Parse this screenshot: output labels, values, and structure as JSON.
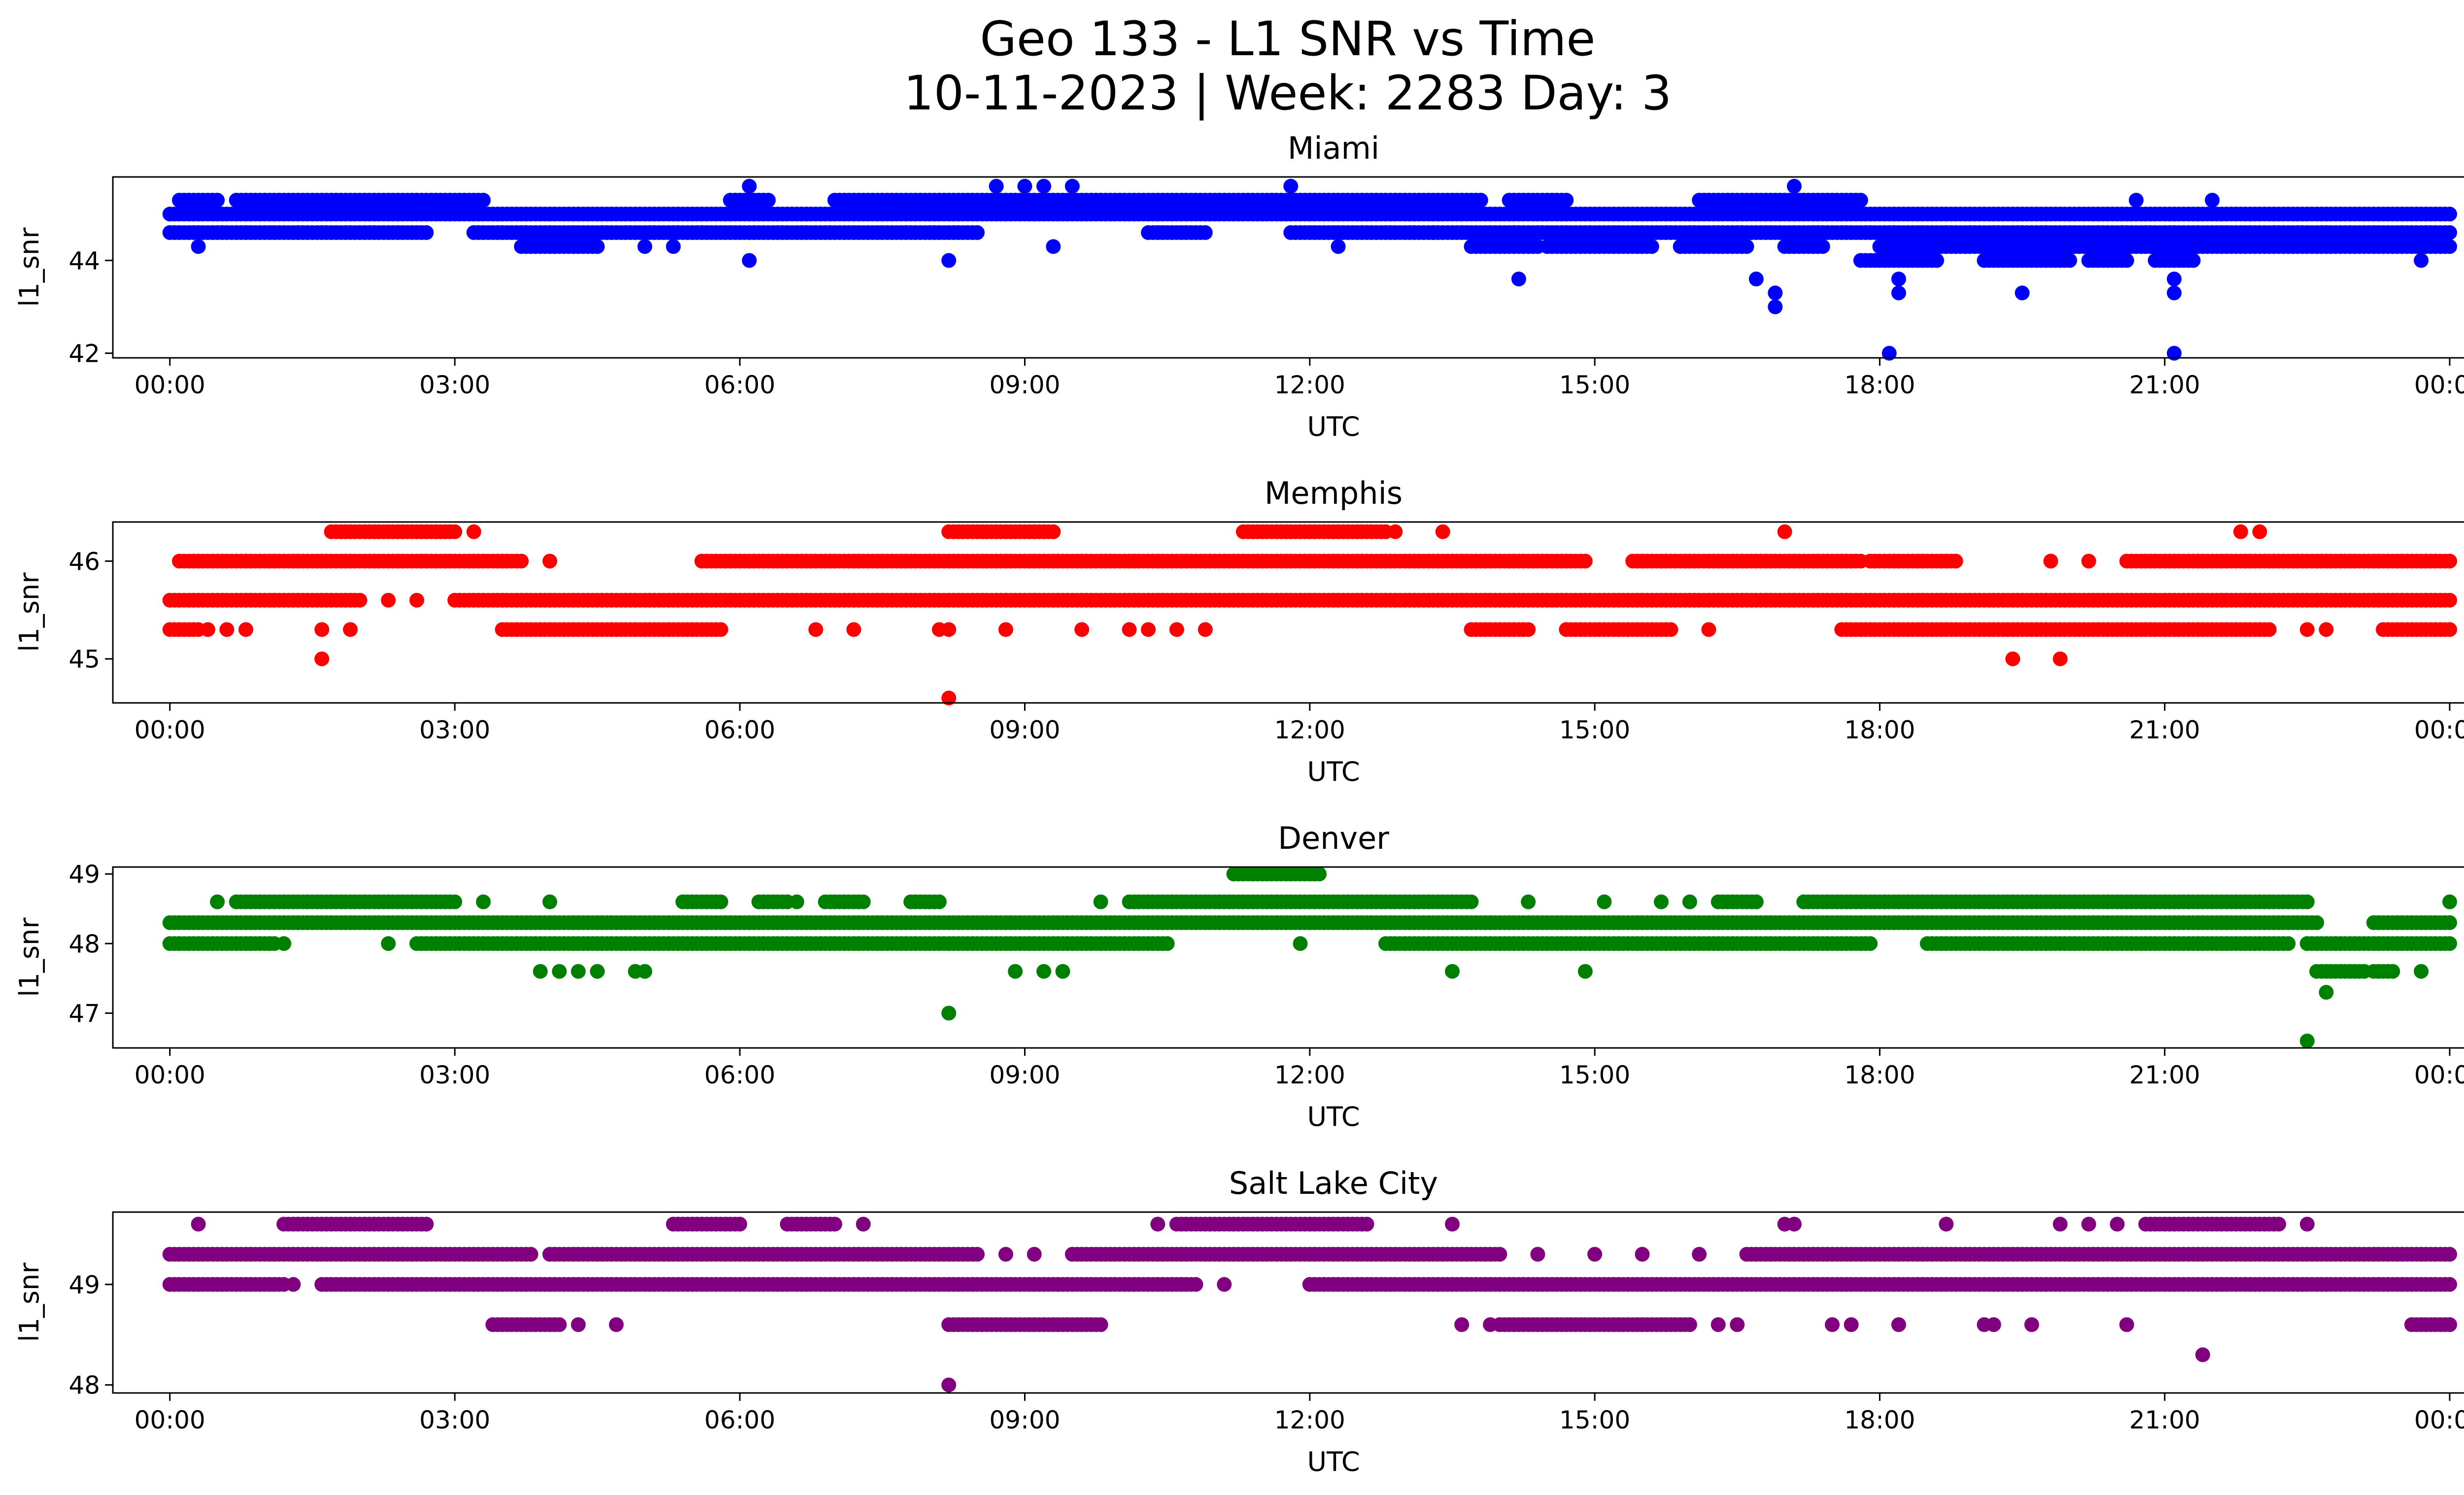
{
  "figure": {
    "title_line1": "Geo 133 - L1 SNR vs Time",
    "title_line2": "10-11-2023 | Week: 2283 Day: 3"
  },
  "chart_data": [
    {
      "type": "scatter",
      "title": "Miami",
      "xlabel": "UTC",
      "ylabel": "l1_snr",
      "color": "#0000ff",
      "xlim": [
        -0.6,
        25.1
      ],
      "ylim": [
        41.9,
        45.8
      ],
      "x_tick_values": [
        0,
        3,
        6,
        9,
        12,
        15,
        18,
        21,
        24
      ],
      "x_tick_labels": [
        "00:00",
        "03:00",
        "06:00",
        "09:00",
        "12:00",
        "15:00",
        "18:00",
        "21:00",
        "00:00"
      ],
      "y_tick_values": [
        42,
        44
      ],
      "y_tick_labels": [
        "42",
        "44"
      ],
      "bands": [
        {
          "y": 45.0,
          "ranges": [
            [
              0,
              24
            ]
          ]
        },
        {
          "y": 44.6,
          "ranges": [
            [
              0,
              2.7
            ],
            [
              3.2,
              8.5
            ],
            [
              10.3,
              10.9
            ],
            [
              11.8,
              13.3
            ],
            [
              13.3,
              17.3
            ],
            [
              17.3,
              24
            ]
          ]
        },
        {
          "y": 45.3,
          "ranges": [
            [
              0.1,
              0.5
            ],
            [
              0.7,
              3.3
            ],
            [
              5.9,
              6.3
            ],
            [
              7.0,
              13.8
            ],
            [
              14.1,
              14.7
            ],
            [
              16.1,
              17.8
            ]
          ]
        },
        {
          "y": 44.3,
          "ranges": [
            [
              3.7,
              4.5
            ],
            [
              13.7,
              14.4
            ],
            [
              14.5,
              15.6
            ],
            [
              15.9,
              16.6
            ],
            [
              17.0,
              17.4
            ],
            [
              18.0,
              24
            ]
          ]
        },
        {
          "y": 44.0,
          "ranges": [
            [
              17.8,
              18.6
            ],
            [
              19.1,
              20.0
            ],
            [
              20.2,
              20.6
            ],
            [
              20.9,
              21.3
            ]
          ]
        }
      ],
      "points": [
        [
          0.3,
          44.3
        ],
        [
          8.2,
          44.0
        ],
        [
          6.1,
          44.0
        ],
        [
          8.7,
          45.6
        ],
        [
          9.0,
          45.6
        ],
        [
          9.2,
          45.6
        ],
        [
          9.5,
          45.6
        ],
        [
          11.8,
          45.6
        ],
        [
          17.1,
          45.6
        ],
        [
          6.1,
          45.6
        ],
        [
          14.2,
          43.6
        ],
        [
          16.7,
          43.6
        ],
        [
          16.9,
          43.3
        ],
        [
          16.9,
          43.0
        ],
        [
          18.2,
          43.6
        ],
        [
          18.2,
          43.3
        ],
        [
          18.1,
          42.0
        ],
        [
          19.5,
          43.3
        ],
        [
          21.1,
          43.6
        ],
        [
          21.1,
          43.3
        ],
        [
          21.1,
          42.0
        ],
        [
          20.7,
          45.3
        ],
        [
          21.5,
          45.3
        ],
        [
          23.7,
          44.0
        ],
        [
          12.3,
          44.3
        ],
        [
          9.3,
          44.3
        ],
        [
          5.3,
          44.3
        ],
        [
          5.0,
          44.3
        ]
      ]
    },
    {
      "type": "scatter",
      "title": "Memphis",
      "xlabel": "UTC",
      "ylabel": "l1_snr",
      "color": "#ff0000",
      "xlim": [
        -0.6,
        25.1
      ],
      "ylim": [
        44.55,
        46.4
      ],
      "x_tick_values": [
        0,
        3,
        6,
        9,
        12,
        15,
        18,
        21,
        24
      ],
      "x_tick_labels": [
        "00:00",
        "03:00",
        "06:00",
        "09:00",
        "12:00",
        "15:00",
        "18:00",
        "21:00",
        "00:00"
      ],
      "y_tick_values": [
        45,
        46
      ],
      "y_tick_labels": [
        "45",
        "46"
      ],
      "bands": [
        {
          "y": 45.6,
          "ranges": [
            [
              0,
              2.0
            ],
            [
              3.0,
              24
            ]
          ]
        },
        {
          "y": 46.0,
          "ranges": [
            [
              0.1,
              3.7
            ],
            [
              5.6,
              14.9
            ],
            [
              15.4,
              17.8
            ],
            [
              17.9,
              18.8
            ],
            [
              20.6,
              24
            ]
          ]
        },
        {
          "y": 45.3,
          "ranges": [
            [
              0,
              0.3
            ],
            [
              3.5,
              5.8
            ],
            [
              13.7,
              14.3
            ],
            [
              14.7,
              15.8
            ],
            [
              17.6,
              22.1
            ],
            [
              23.3,
              24
            ]
          ]
        },
        {
          "y": 46.3,
          "ranges": [
            [
              1.7,
              3.0
            ],
            [
              8.2,
              9.3
            ],
            [
              11.3,
              12.8
            ]
          ]
        }
      ],
      "points": [
        [
          0.4,
          45.3
        ],
        [
          0.6,
          45.3
        ],
        [
          0.8,
          45.3
        ],
        [
          1.6,
          45.3
        ],
        [
          1.9,
          45.3
        ],
        [
          4.0,
          46.0
        ],
        [
          3.2,
          46.3
        ],
        [
          6.8,
          45.3
        ],
        [
          7.2,
          45.3
        ],
        [
          8.1,
          45.3
        ],
        [
          8.2,
          45.3
        ],
        [
          8.8,
          45.3
        ],
        [
          9.6,
          45.3
        ],
        [
          10.1,
          45.3
        ],
        [
          10.3,
          45.3
        ],
        [
          10.6,
          45.3
        ],
        [
          10.9,
          45.3
        ],
        [
          13.4,
          46.3
        ],
        [
          12.9,
          46.3
        ],
        [
          17.0,
          46.3
        ],
        [
          21.8,
          46.3
        ],
        [
          22.0,
          46.3
        ],
        [
          16.2,
          45.3
        ],
        [
          2.3,
          45.6
        ],
        [
          2.6,
          45.6
        ],
        [
          1.6,
          45.0
        ],
        [
          8.2,
          44.6
        ],
        [
          19.4,
          45.0
        ],
        [
          19.9,
          45.0
        ],
        [
          19.8,
          46.0
        ],
        [
          20.2,
          46.0
        ],
        [
          22.5,
          45.3
        ],
        [
          22.7,
          45.3
        ]
      ]
    },
    {
      "type": "scatter",
      "title": "Denver",
      "xlabel": "UTC",
      "ylabel": "l1_snr",
      "color": "#008000",
      "xlim": [
        -0.6,
        25.1
      ],
      "ylim": [
        46.5,
        49.1
      ],
      "x_tick_values": [
        0,
        3,
        6,
        9,
        12,
        15,
        18,
        21,
        24
      ],
      "x_tick_labels": [
        "00:00",
        "03:00",
        "06:00",
        "09:00",
        "12:00",
        "15:00",
        "18:00",
        "21:00",
        "00:00"
      ],
      "y_tick_values": [
        47,
        48,
        49
      ],
      "y_tick_labels": [
        "47",
        "48",
        "49"
      ],
      "bands": [
        {
          "y": 48.3,
          "ranges": [
            [
              0,
              22.6
            ],
            [
              23.2,
              24
            ]
          ]
        },
        {
          "y": 48.0,
          "ranges": [
            [
              0,
              1.1
            ],
            [
              2.6,
              10.5
            ],
            [
              12.8,
              17.9
            ],
            [
              18.5,
              22.3
            ],
            [
              22.5,
              24
            ]
          ]
        },
        {
          "y": 48.6,
          "ranges": [
            [
              0.7,
              3.0
            ],
            [
              5.4,
              5.8
            ],
            [
              6.2,
              6.5
            ],
            [
              6.9,
              7.3
            ],
            [
              7.8,
              8.1
            ],
            [
              10.1,
              13.7
            ],
            [
              16.3,
              16.7
            ],
            [
              17.2,
              22.5
            ]
          ]
        },
        {
          "y": 47.6,
          "ranges": [
            [
              22.6,
              23.1
            ],
            [
              23.2,
              23.4
            ]
          ]
        },
        {
          "y": 49.0,
          "ranges": [
            [
              11.2,
              12.1
            ]
          ]
        }
      ],
      "points": [
        [
          0.5,
          48.6
        ],
        [
          3.3,
          48.6
        ],
        [
          4.0,
          48.6
        ],
        [
          6.6,
          48.6
        ],
        [
          9.8,
          48.6
        ],
        [
          14.3,
          48.6
        ],
        [
          15.1,
          48.6
        ],
        [
          15.7,
          48.6
        ],
        [
          16.0,
          48.6
        ],
        [
          1.2,
          48.0
        ],
        [
          2.3,
          48.0
        ],
        [
          11.9,
          48.0
        ],
        [
          22.5,
          48.0
        ],
        [
          22.8,
          48.0
        ],
        [
          3.9,
          47.6
        ],
        [
          4.1,
          47.6
        ],
        [
          4.3,
          47.6
        ],
        [
          4.5,
          47.6
        ],
        [
          4.9,
          47.6
        ],
        [
          5.0,
          47.6
        ],
        [
          8.9,
          47.6
        ],
        [
          9.2,
          47.6
        ],
        [
          9.4,
          47.6
        ],
        [
          13.5,
          47.6
        ],
        [
          14.9,
          47.6
        ],
        [
          23.7,
          47.6
        ],
        [
          8.2,
          47.0
        ],
        [
          22.7,
          47.3
        ],
        [
          22.5,
          46.6
        ],
        [
          24.0,
          48.6
        ]
      ]
    },
    {
      "type": "scatter",
      "title": "Salt Lake City",
      "xlabel": "UTC",
      "ylabel": "l1_snr",
      "color": "#800080",
      "xlim": [
        -0.6,
        25.1
      ],
      "ylim": [
        47.92,
        49.72
      ],
      "x_tick_values": [
        0,
        3,
        6,
        9,
        12,
        15,
        18,
        21,
        24
      ],
      "x_tick_labels": [
        "00:00",
        "03:00",
        "06:00",
        "09:00",
        "12:00",
        "15:00",
        "18:00",
        "21:00",
        "00:00"
      ],
      "y_tick_values": [
        48,
        49
      ],
      "y_tick_labels": [
        "48",
        "49"
      ],
      "bands": [
        {
          "y": 49.3,
          "ranges": [
            [
              0,
              3.8
            ],
            [
              4.0,
              8.5
            ],
            [
              9.5,
              14.0
            ],
            [
              16.6,
              24
            ]
          ]
        },
        {
          "y": 49.0,
          "ranges": [
            [
              0,
              1.2
            ],
            [
              1.6,
              10.8
            ],
            [
              12.0,
              24
            ]
          ]
        },
        {
          "y": 49.6,
          "ranges": [
            [
              1.2,
              2.7
            ],
            [
              5.3,
              6.0
            ],
            [
              6.5,
              7.0
            ],
            [
              10.6,
              12.6
            ],
            [
              20.8,
              22.2
            ]
          ]
        },
        {
          "y": 48.6,
          "ranges": [
            [
              3.4,
              4.1
            ],
            [
              8.2,
              9.8
            ],
            [
              14.0,
              16.0
            ],
            [
              23.6,
              24
            ]
          ]
        }
      ],
      "points": [
        [
          0.3,
          49.6
        ],
        [
          7.3,
          49.6
        ],
        [
          10.4,
          49.6
        ],
        [
          13.5,
          49.6
        ],
        [
          17.0,
          49.6
        ],
        [
          17.1,
          49.6
        ],
        [
          18.7,
          49.6
        ],
        [
          19.9,
          49.6
        ],
        [
          20.2,
          49.6
        ],
        [
          20.5,
          49.6
        ],
        [
          22.5,
          49.6
        ],
        [
          8.8,
          49.3
        ],
        [
          9.1,
          49.3
        ],
        [
          14.4,
          49.3
        ],
        [
          15.0,
          49.3
        ],
        [
          15.5,
          49.3
        ],
        [
          16.1,
          49.3
        ],
        [
          11.1,
          49.0
        ],
        [
          1.3,
          49.0
        ],
        [
          4.3,
          48.6
        ],
        [
          4.7,
          48.6
        ],
        [
          13.6,
          48.6
        ],
        [
          13.9,
          48.6
        ],
        [
          16.3,
          48.6
        ],
        [
          16.5,
          48.6
        ],
        [
          17.5,
          48.6
        ],
        [
          17.7,
          48.6
        ],
        [
          18.2,
          48.6
        ],
        [
          19.1,
          48.6
        ],
        [
          19.2,
          48.6
        ],
        [
          19.6,
          48.6
        ],
        [
          20.6,
          48.6
        ],
        [
          21.4,
          48.3
        ],
        [
          8.2,
          48.0
        ]
      ]
    }
  ]
}
